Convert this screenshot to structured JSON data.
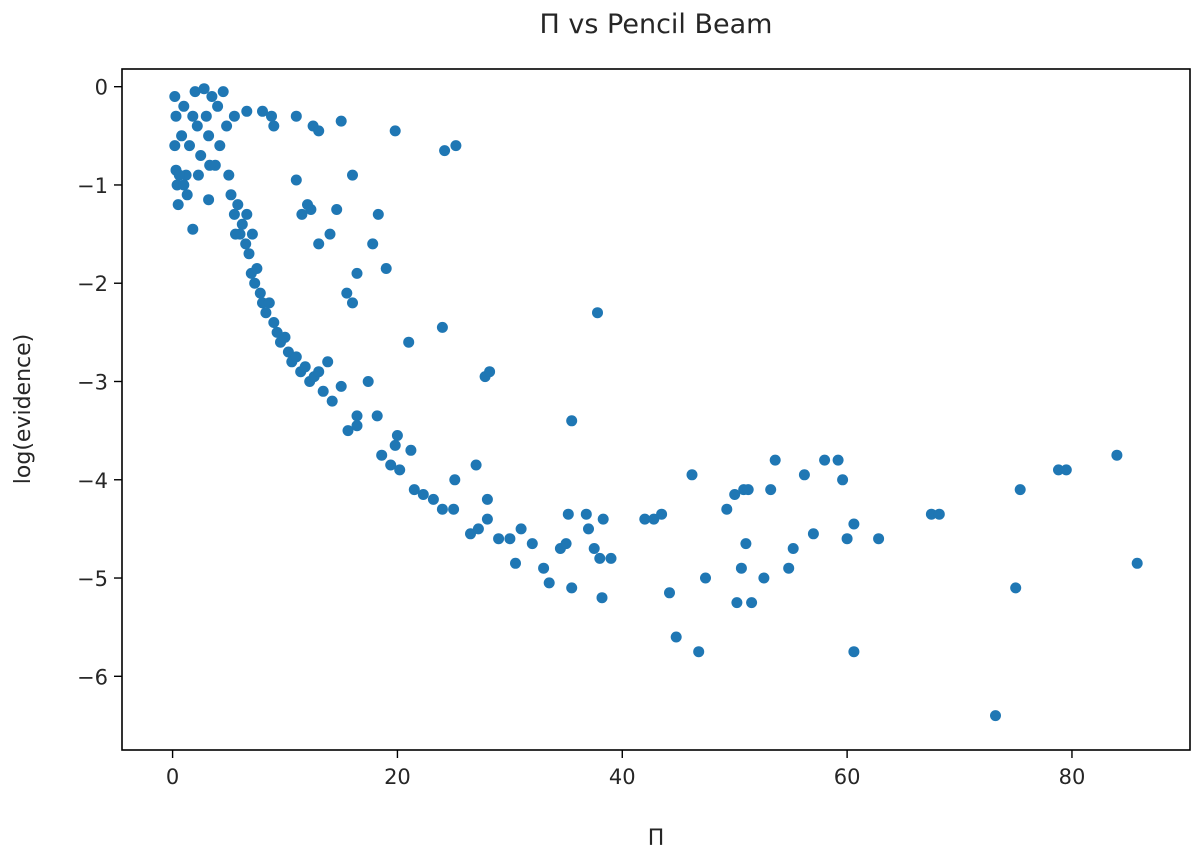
{
  "chart_data": {
    "type": "scatter",
    "title": "Π vs Pencil Beam",
    "xlabel": "Π",
    "ylabel": "log(evidence)",
    "xlim": [
      -4.5,
      90.5
    ],
    "ylim": [
      -6.75,
      0.18
    ],
    "xticks": [
      0,
      20,
      40,
      60,
      80
    ],
    "yticks": [
      0,
      -1,
      -2,
      -3,
      -4,
      -5,
      -6
    ],
    "xtick_labels": [
      "0",
      "20",
      "40",
      "60",
      "80"
    ],
    "ytick_labels": [
      "0",
      "−1",
      "−2",
      "−3",
      "−4",
      "−5",
      "−6"
    ],
    "grid": false,
    "color": "#1f77b4",
    "series": [
      {
        "points": [
          [
            0.2,
            -0.1
          ],
          [
            0.3,
            -0.3
          ],
          [
            0.2,
            -0.6
          ],
          [
            0.3,
            -0.85
          ],
          [
            0.4,
            -1.0
          ],
          [
            0.5,
            -1.2
          ],
          [
            0.8,
            -0.5
          ],
          [
            1.0,
            -0.2
          ],
          [
            1.2,
            -0.9
          ],
          [
            1.5,
            -0.6
          ],
          [
            1.8,
            -0.3
          ],
          [
            2.0,
            -0.05
          ],
          [
            2.2,
            -0.4
          ],
          [
            2.5,
            -0.7
          ],
          [
            2.8,
            -0.02
          ],
          [
            3.0,
            -0.3
          ],
          [
            3.2,
            -0.5
          ],
          [
            3.5,
            -0.1
          ],
          [
            3.8,
            -0.8
          ],
          [
            4.0,
            -0.2
          ],
          [
            4.2,
            -0.6
          ],
          [
            4.5,
            -0.05
          ],
          [
            4.8,
            -0.4
          ],
          [
            5.0,
            -0.9
          ],
          [
            5.2,
            -1.1
          ],
          [
            1.0,
            -1.0
          ],
          [
            1.3,
            -1.1
          ],
          [
            0.6,
            -0.9
          ],
          [
            2.3,
            -0.9
          ],
          [
            3.3,
            -0.8
          ],
          [
            5.5,
            -1.3
          ],
          [
            5.8,
            -1.2
          ],
          [
            6.0,
            -1.5
          ],
          [
            6.2,
            -1.4
          ],
          [
            6.5,
            -1.6
          ],
          [
            6.8,
            -1.7
          ],
          [
            7.0,
            -1.9
          ],
          [
            7.3,
            -2.0
          ],
          [
            7.5,
            -1.85
          ],
          [
            7.8,
            -2.1
          ],
          [
            8.0,
            -2.2
          ],
          [
            8.3,
            -2.3
          ],
          [
            8.6,
            -2.2
          ],
          [
            9.0,
            -2.4
          ],
          [
            9.3,
            -2.5
          ],
          [
            9.6,
            -2.6
          ],
          [
            10.0,
            -2.55
          ],
          [
            10.3,
            -2.7
          ],
          [
            10.6,
            -2.8
          ],
          [
            11.0,
            -2.75
          ],
          [
            11.4,
            -2.9
          ],
          [
            11.8,
            -2.85
          ],
          [
            12.2,
            -3.0
          ],
          [
            12.6,
            -2.95
          ],
          [
            13.0,
            -2.9
          ],
          [
            13.4,
            -3.1
          ],
          [
            13.8,
            -2.8
          ],
          [
            14.2,
            -3.2
          ],
          [
            6.6,
            -1.3
          ],
          [
            7.1,
            -1.5
          ],
          [
            1.8,
            -1.45
          ],
          [
            3.2,
            -1.15
          ],
          [
            5.6,
            -1.5
          ],
          [
            6.6,
            -0.25
          ],
          [
            5.5,
            -0.3
          ],
          [
            8.0,
            -0.25
          ],
          [
            8.8,
            -0.3
          ],
          [
            9.0,
            -0.4
          ],
          [
            11.0,
            -0.3
          ],
          [
            12.5,
            -0.4
          ],
          [
            13.0,
            -0.45
          ],
          [
            15.0,
            -0.35
          ],
          [
            19.8,
            -0.45
          ],
          [
            24.2,
            -0.65
          ],
          [
            25.2,
            -0.6
          ],
          [
            16.0,
            -0.9
          ],
          [
            11.0,
            -0.95
          ],
          [
            11.5,
            -1.3
          ],
          [
            12.0,
            -1.2
          ],
          [
            12.3,
            -1.25
          ],
          [
            13.0,
            -1.6
          ],
          [
            14.6,
            -1.25
          ],
          [
            14.0,
            -1.5
          ],
          [
            16.4,
            -1.9
          ],
          [
            17.8,
            -1.6
          ],
          [
            18.3,
            -1.3
          ],
          [
            19.0,
            -1.85
          ],
          [
            15.5,
            -2.1
          ],
          [
            16.0,
            -2.2
          ],
          [
            24.0,
            -2.45
          ],
          [
            21.0,
            -2.6
          ],
          [
            37.8,
            -2.3
          ],
          [
            27.8,
            -2.95
          ],
          [
            28.2,
            -2.9
          ],
          [
            35.5,
            -3.4
          ],
          [
            15.0,
            -3.05
          ],
          [
            16.4,
            -3.35
          ],
          [
            17.4,
            -3.0
          ],
          [
            18.2,
            -3.35
          ],
          [
            15.6,
            -3.5
          ],
          [
            16.4,
            -3.45
          ],
          [
            20.0,
            -3.55
          ],
          [
            19.8,
            -3.65
          ],
          [
            21.2,
            -3.7
          ],
          [
            18.6,
            -3.75
          ],
          [
            19.4,
            -3.85
          ],
          [
            20.2,
            -3.9
          ],
          [
            21.5,
            -4.1
          ],
          [
            22.3,
            -4.15
          ],
          [
            23.2,
            -4.2
          ],
          [
            24.0,
            -4.3
          ],
          [
            25.0,
            -4.3
          ],
          [
            25.1,
            -4.0
          ],
          [
            27.0,
            -3.85
          ],
          [
            28.0,
            -4.2
          ],
          [
            26.5,
            -4.55
          ],
          [
            27.2,
            -4.5
          ],
          [
            28.0,
            -4.4
          ],
          [
            29.0,
            -4.6
          ],
          [
            30.0,
            -4.6
          ],
          [
            30.5,
            -4.85
          ],
          [
            31.0,
            -4.5
          ],
          [
            32.0,
            -4.65
          ],
          [
            33.0,
            -4.9
          ],
          [
            33.5,
            -5.05
          ],
          [
            34.5,
            -4.7
          ],
          [
            35.0,
            -4.65
          ],
          [
            35.2,
            -4.35
          ],
          [
            35.5,
            -5.1
          ],
          [
            36.8,
            -4.35
          ],
          [
            37.0,
            -4.5
          ],
          [
            37.5,
            -4.7
          ],
          [
            38.0,
            -4.8
          ],
          [
            38.3,
            -4.4
          ],
          [
            38.2,
            -5.2
          ],
          [
            39.0,
            -4.8
          ],
          [
            42.0,
            -4.4
          ],
          [
            42.8,
            -4.4
          ],
          [
            43.5,
            -4.35
          ],
          [
            44.2,
            -5.15
          ],
          [
            44.8,
            -5.6
          ],
          [
            46.2,
            -3.95
          ],
          [
            46.8,
            -5.75
          ],
          [
            47.4,
            -5.0
          ],
          [
            49.3,
            -4.3
          ],
          [
            50.0,
            -4.15
          ],
          [
            50.2,
            -5.25
          ],
          [
            50.8,
            -4.1
          ],
          [
            51.2,
            -4.1
          ],
          [
            51.0,
            -4.65
          ],
          [
            50.6,
            -4.9
          ],
          [
            51.5,
            -5.25
          ],
          [
            52.6,
            -5.0
          ],
          [
            53.6,
            -3.8
          ],
          [
            53.2,
            -4.1
          ],
          [
            54.8,
            -4.9
          ],
          [
            55.2,
            -4.7
          ],
          [
            56.2,
            -3.95
          ],
          [
            57.0,
            -4.55
          ],
          [
            58.0,
            -3.8
          ],
          [
            59.2,
            -3.8
          ],
          [
            59.6,
            -4.0
          ],
          [
            60.0,
            -4.6
          ],
          [
            60.6,
            -4.45
          ],
          [
            60.6,
            -5.75
          ],
          [
            62.8,
            -4.6
          ],
          [
            67.5,
            -4.35
          ],
          [
            68.2,
            -4.35
          ],
          [
            73.2,
            -6.4
          ],
          [
            75.0,
            -5.1
          ],
          [
            75.4,
            -4.1
          ],
          [
            78.8,
            -3.9
          ],
          [
            79.5,
            -3.9
          ],
          [
            84.0,
            -3.75
          ],
          [
            85.8,
            -4.85
          ]
        ]
      }
    ]
  }
}
